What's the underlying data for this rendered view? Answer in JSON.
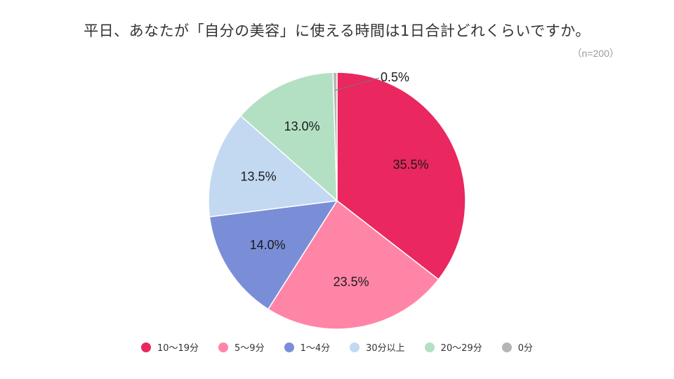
{
  "chart_data": {
    "type": "pie",
    "title": "平日、あなたが「自分の美容」に使える時間は1日合計どれくらいですか。",
    "note": "（n=200）",
    "slices": [
      {
        "label": "10〜19分",
        "value": 35.5,
        "value_label": "35.5%",
        "color": "#ea275e"
      },
      {
        "label": "5〜9分",
        "value": 23.5,
        "value_label": "23.5%",
        "color": "#ff85a7"
      },
      {
        "label": "1〜4分",
        "value": 14.0,
        "value_label": "14.0%",
        "color": "#7a8ed8"
      },
      {
        "label": "30分以上",
        "value": 13.5,
        "value_label": "13.5%",
        "color": "#c3d8f1"
      },
      {
        "label": "20〜29分",
        "value": 13.0,
        "value_label": "13.0%",
        "color": "#b3e0c3"
      },
      {
        "label": "0分",
        "value": 0.5,
        "value_label": "0.5%",
        "color": "#b5b5b5"
      }
    ],
    "legend_position": "bottom"
  }
}
